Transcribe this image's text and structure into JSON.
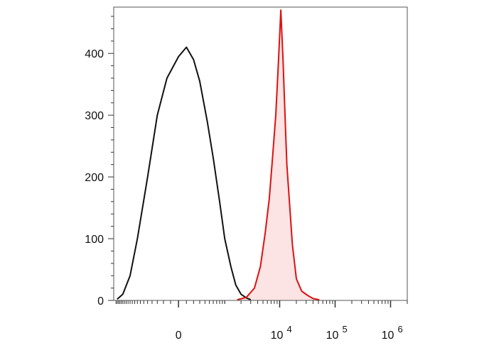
{
  "chart_data": {
    "type": "area",
    "title": "",
    "xlabel": "",
    "ylabel": "",
    "x_scale": "biexponential",
    "ylim": [
      0,
      475
    ],
    "grid": false,
    "legend": "none",
    "y_ticks": [
      {
        "value": 0,
        "label": "0"
      },
      {
        "value": 100,
        "label": "100"
      },
      {
        "value": 200,
        "label": "200"
      },
      {
        "value": 300,
        "label": "300"
      },
      {
        "value": 400,
        "label": "400"
      }
    ],
    "x_ticks": [
      {
        "value": 0,
        "base": "0",
        "exp": ""
      },
      {
        "value": 10000,
        "base": "10",
        "exp": "4"
      },
      {
        "value": 100000,
        "base": "10",
        "exp": "5"
      },
      {
        "value": 1000000,
        "base": "10",
        "exp": "6"
      }
    ],
    "series": [
      {
        "color": "#111111",
        "fill": "none",
        "x": [
          -1900,
          -1500,
          -1100,
          -800,
          -500,
          -300,
          -150,
          0,
          100,
          200,
          300,
          450,
          600,
          800,
          1000,
          1300,
          1600,
          2000,
          2500,
          3000
        ],
        "y": [
          2,
          10,
          40,
          100,
          200,
          300,
          360,
          395,
          410,
          390,
          355,
          290,
          230,
          160,
          100,
          55,
          25,
          10,
          4,
          1
        ]
      },
      {
        "color": "#dd1111",
        "fill": "#fce4e4",
        "x": [
          1700,
          2500,
          3500,
          4500,
          5500,
          6500,
          7500,
          8500,
          9500,
          10500,
          11500,
          12500,
          13500,
          15000,
          17000,
          20000,
          25000,
          32000,
          40000,
          52000
        ],
        "y": [
          1,
          5,
          20,
          55,
          110,
          165,
          235,
          300,
          385,
          470,
          390,
          300,
          220,
          160,
          90,
          35,
          15,
          8,
          3,
          1
        ]
      }
    ]
  }
}
